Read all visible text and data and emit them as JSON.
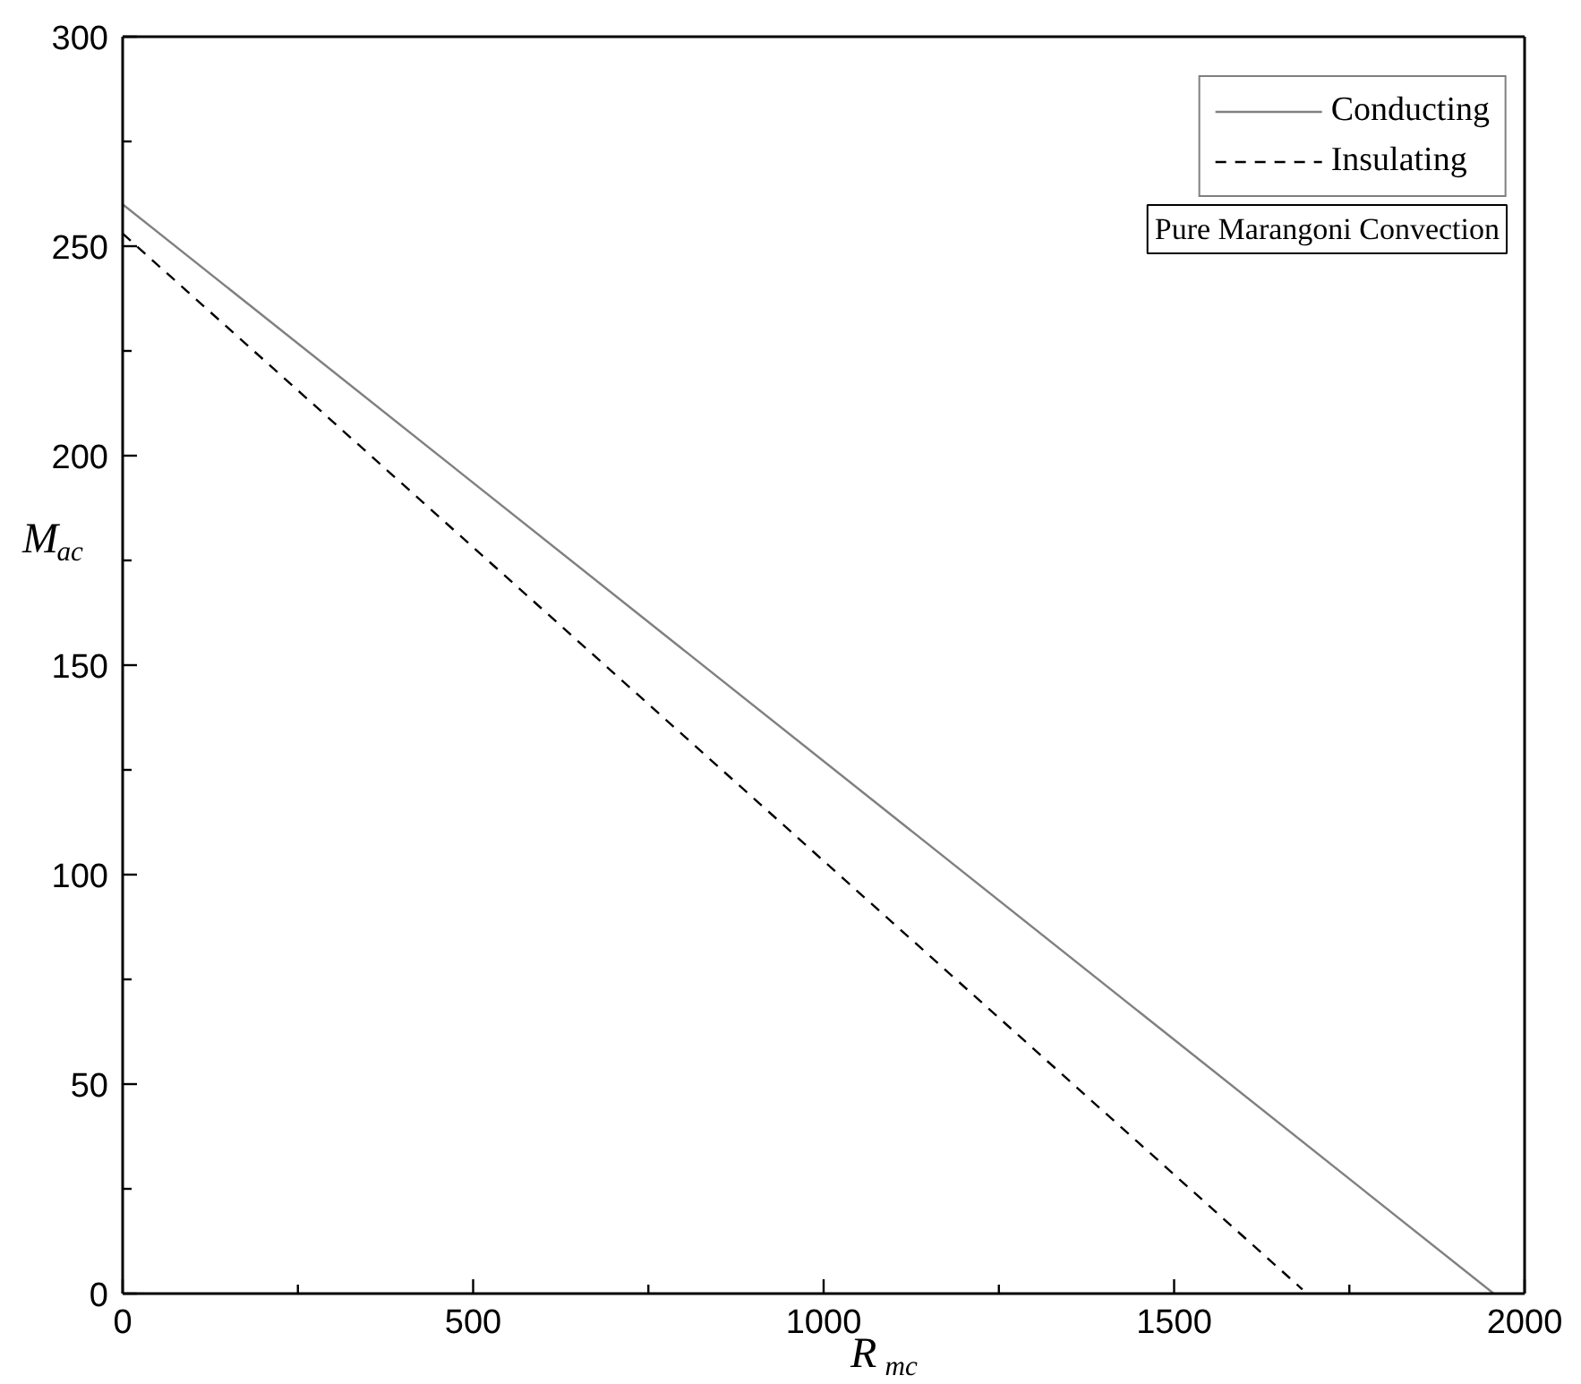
{
  "chart_data": {
    "type": "line",
    "xlabel": "R$_{mc}$",
    "ylabel": "M$_{ac}$",
    "xlim": [
      0,
      2000
    ],
    "ylim": [
      0,
      300
    ],
    "xticks": [
      0,
      500,
      1000,
      1500,
      2000
    ],
    "yticks": [
      0,
      50,
      100,
      150,
      200,
      250,
      300
    ],
    "legend": "top right",
    "grid": false,
    "marker": "none",
    "series": [
      {
        "name": "Conducting",
        "color": "#808080",
        "line_style": "solid",
        "x": [
          0,
          1956
        ],
        "values": [
          260,
          0
        ]
      },
      {
        "name": "Insulating",
        "color": "#000000",
        "line_style": "dashed",
        "x": [
          0,
          1683
        ],
        "values": [
          253,
          1
        ]
      }
    ],
    "annotations": [
      "Pure Marangoni Convection"
    ]
  }
}
